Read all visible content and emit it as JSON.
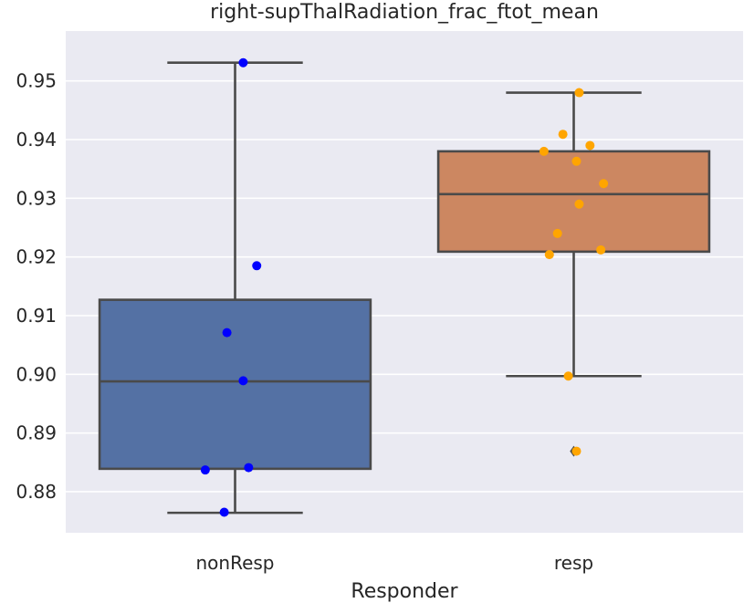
{
  "chart_data": {
    "type": "box",
    "title": "right-supThalRadiation_frac_ftot_mean",
    "xlabel": "Responder",
    "ylabel": "",
    "categories": [
      "nonResp",
      "resp"
    ],
    "ylim": [
      0.873,
      0.9585
    ],
    "yticks": [
      0.88,
      0.89,
      0.9,
      0.91,
      0.92,
      0.93,
      0.94,
      0.95
    ],
    "ytick_labels": [
      "0.88",
      "0.89",
      "0.90",
      "0.91",
      "0.92",
      "0.93",
      "0.94",
      "0.95"
    ],
    "grid": true,
    "boxes": [
      {
        "category": "nonResp",
        "whisker_low": 0.8764,
        "q1": 0.8839,
        "median": 0.8988,
        "q3": 0.9127,
        "whisker_high": 0.9531,
        "fliers": [],
        "color": "#5471a4",
        "point_color": "#0000ff",
        "points": [
          0.9531,
          0.9185,
          0.9071,
          0.8989,
          0.8841,
          0.8837,
          0.8765
        ]
      },
      {
        "category": "resp",
        "whisker_low": 0.8997,
        "q1": 0.9209,
        "median": 0.9307,
        "q3": 0.938,
        "whisker_high": 0.948,
        "fliers": [
          0.8869
        ],
        "color": "#cc8761",
        "point_color": "#ffa500",
        "points": [
          0.948,
          0.9409,
          0.939,
          0.938,
          0.9363,
          0.9325,
          0.929,
          0.924,
          0.9212,
          0.9204,
          0.8997,
          0.8869
        ]
      }
    ]
  }
}
